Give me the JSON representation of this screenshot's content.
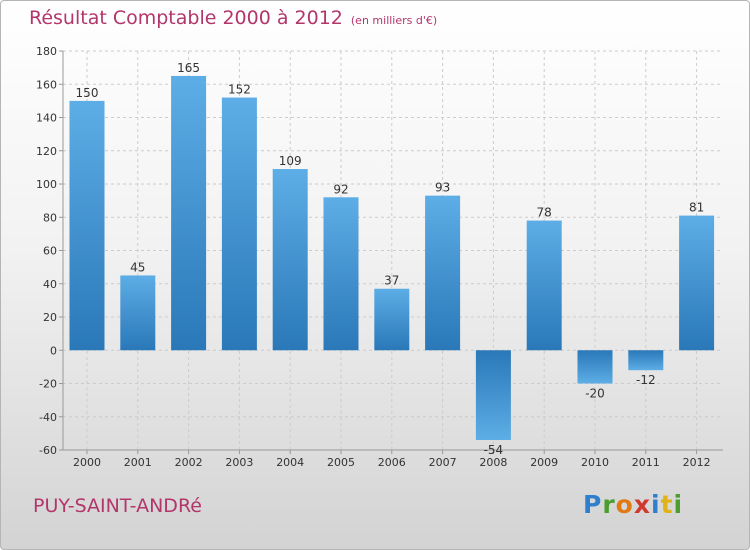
{
  "header": {
    "title": "Résultat Comptable 2000 à 2012",
    "subtitle": "(en milliers d'€)"
  },
  "footer": {
    "town": "PUY-SAINT-ANDRé",
    "logo": "Proxiti",
    "logo_colors": [
      "#2f7fcf",
      "#4a9d2e",
      "#e07a17",
      "#d03a2e",
      "#2f7fcf",
      "#e0b317",
      "#4a9d2e"
    ]
  },
  "colors": {
    "title": "#b3366b",
    "bar_light": "#5dade6",
    "bar_dark": "#2a78b8",
    "grid": "#cccccc"
  },
  "chart_data": {
    "type": "bar",
    "title": "Résultat Comptable 2000 à 2012",
    "subtitle": "(en milliers d'€)",
    "categories": [
      "2000",
      "2001",
      "2002",
      "2003",
      "2004",
      "2005",
      "2006",
      "2007",
      "2008",
      "2009",
      "2010",
      "2011",
      "2012"
    ],
    "values": [
      150,
      45,
      165,
      152,
      109,
      92,
      37,
      93,
      -54,
      78,
      -20,
      -12,
      81
    ],
    "ylim": [
      -60,
      180
    ],
    "yticks": [
      -60,
      -40,
      -20,
      0,
      20,
      40,
      60,
      80,
      100,
      120,
      140,
      160,
      180
    ],
    "grid": true,
    "xlabel": "",
    "ylabel": ""
  }
}
